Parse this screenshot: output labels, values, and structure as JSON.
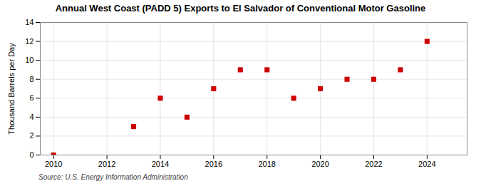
{
  "chart_data": {
    "type": "scatter",
    "title": "Annual West Coast (PADD 5) Exports to El Salvador of Conventional Motor Gasoline",
    "ylabel": "Thousand Barrels per Day",
    "source": "Source: U.S. Energy Information Administration",
    "x": [
      2010,
      2013,
      2014,
      2015,
      2016,
      2017,
      2018,
      2019,
      2020,
      2021,
      2022,
      2023,
      2024
    ],
    "values": [
      0,
      3,
      6,
      4,
      7,
      9,
      9,
      6,
      7,
      8,
      8,
      9,
      12
    ],
    "color": "#cc0000",
    "marker": "square",
    "xlim": [
      2009.5,
      2025.5
    ],
    "xticks": [
      2010,
      2012,
      2014,
      2016,
      2018,
      2020,
      2022,
      2024
    ],
    "ylim": [
      0,
      14
    ],
    "yticks": [
      0,
      2,
      4,
      6,
      8,
      10,
      12,
      14
    ],
    "grid": true
  }
}
